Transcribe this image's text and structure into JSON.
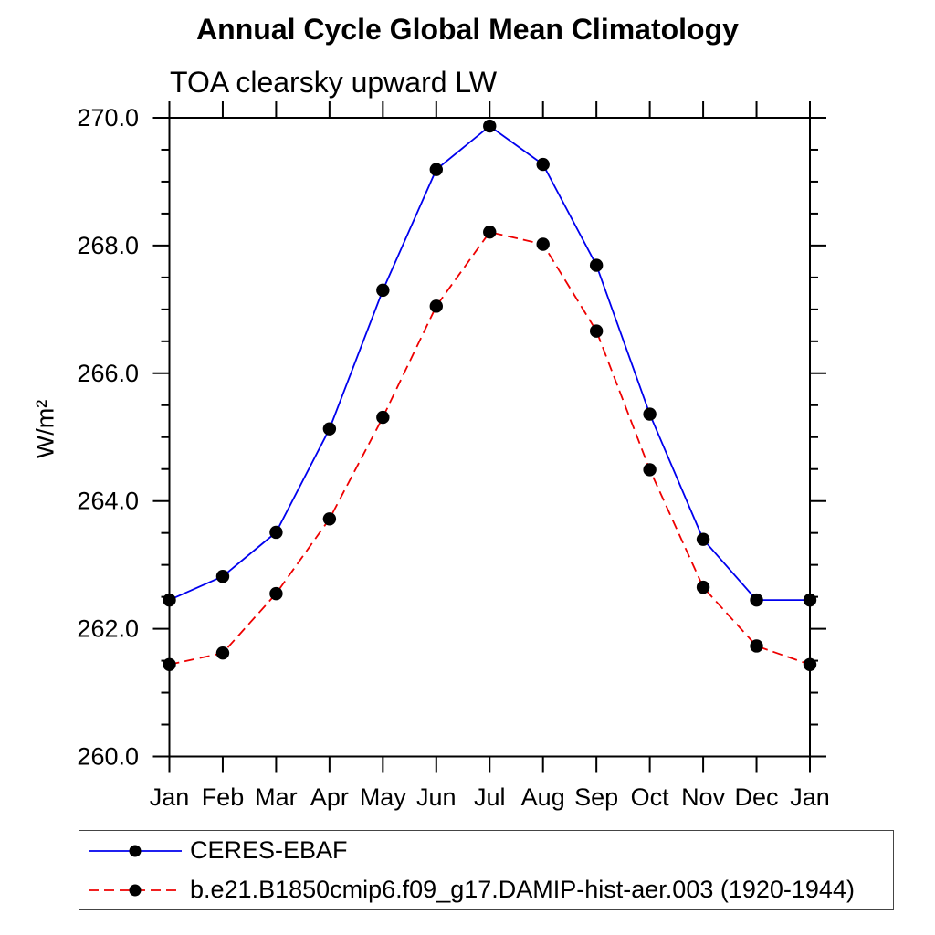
{
  "chart_data": {
    "type": "line",
    "title": "Annual Cycle Global Mean Climatology",
    "subtitle": "TOA clearsky upward LW",
    "xlabel": "",
    "ylabel": "W/m²",
    "categories": [
      "Jan",
      "Feb",
      "Mar",
      "Apr",
      "May",
      "Jun",
      "Jul",
      "Aug",
      "Sep",
      "Oct",
      "Nov",
      "Dec",
      "Jan"
    ],
    "ylim": [
      260.0,
      270.0
    ],
    "y_major_step": 2.0,
    "y_minor_step": 0.5,
    "y_tick_labels": [
      "260.0",
      "262.0",
      "264.0",
      "266.0",
      "268.0",
      "270.0"
    ],
    "grid": false,
    "legend_position": "bottom-box",
    "frame": "full-box-outward-ticks",
    "axis_color": "#000000",
    "background_color": "#ffffff",
    "marker_color": "#000000",
    "series": [
      {
        "name": "CERES-EBAF",
        "color": "#0000ee",
        "style": "solid",
        "marker": "filled-circle",
        "values": [
          262.45,
          262.82,
          263.51,
          265.13,
          267.3,
          269.19,
          269.87,
          269.27,
          267.69,
          265.36,
          263.4,
          262.45,
          262.45
        ]
      },
      {
        "name": "b.e21.B1850cmip6.f09_g17.DAMIP-hist-aer.003 (1920-1944)",
        "color": "#ee0000",
        "style": "dashed",
        "marker": "filled-circle",
        "values": [
          261.44,
          261.62,
          262.55,
          263.72,
          265.31,
          267.05,
          268.21,
          268.02,
          266.66,
          264.49,
          262.65,
          261.73,
          261.44
        ]
      }
    ]
  }
}
